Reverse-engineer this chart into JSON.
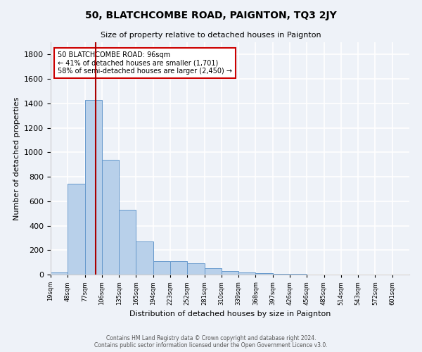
{
  "title": "50, BLATCHCOMBE ROAD, PAIGNTON, TQ3 2JY",
  "subtitle": "Size of property relative to detached houses in Paignton",
  "xlabel": "Distribution of detached houses by size in Paignton",
  "ylabel": "Number of detached properties",
  "bin_labels": [
    "19sqm",
    "48sqm",
    "77sqm",
    "106sqm",
    "135sqm",
    "165sqm",
    "194sqm",
    "223sqm",
    "252sqm",
    "281sqm",
    "310sqm",
    "339sqm",
    "368sqm",
    "397sqm",
    "426sqm",
    "456sqm",
    "485sqm",
    "514sqm",
    "543sqm",
    "572sqm",
    "601sqm"
  ],
  "bar_heights": [
    20,
    740,
    1430,
    940,
    530,
    270,
    110,
    110,
    95,
    50,
    30,
    20,
    10,
    5,
    5,
    2,
    2,
    1,
    1,
    1,
    1
  ],
  "bar_color": "#b8d0ea",
  "bar_edge_color": "#6699cc",
  "vline_index": 2.57,
  "vline_color": "#aa0000",
  "annotation_text": "50 BLATCHCOMBE ROAD: 96sqm\n← 41% of detached houses are smaller (1,701)\n58% of semi-detached houses are larger (2,450) →",
  "annotation_box_color": "#ffffff",
  "annotation_box_edge_color": "#cc0000",
  "ylim": [
    0,
    1900
  ],
  "yticks": [
    0,
    200,
    400,
    600,
    800,
    1000,
    1200,
    1400,
    1600,
    1800
  ],
  "footer_line1": "Contains HM Land Registry data © Crown copyright and database right 2024.",
  "footer_line2": "Contains public sector information licensed under the Open Government Licence v3.0.",
  "bg_color": "#eef2f8",
  "grid_color": "#ffffff",
  "fig_width": 6.0,
  "fig_height": 5.0,
  "dpi": 100
}
